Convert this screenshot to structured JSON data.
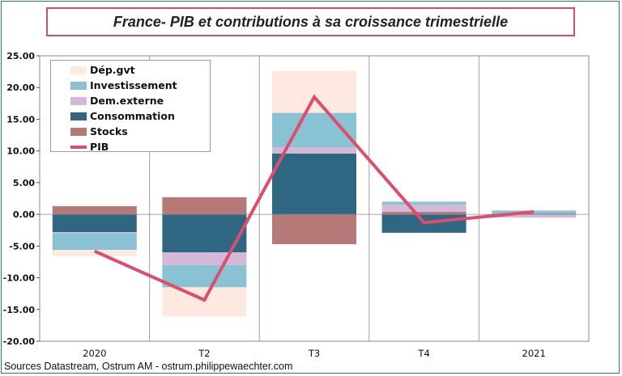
{
  "title": "France- PIB et contributions à sa croissance trimestrielle",
  "source": "Sources Datastream, Ostrum AM - ostrum.philippewaechter.com",
  "colors": {
    "Dep_gvt": "#fde9df",
    "Investissement": "#89c2d2",
    "Dem_externe": "#d4b8da",
    "Consommation": "#2f6783",
    "Stocks": "#b57a78",
    "PIB": "#dc4e6c",
    "title_border": "#d24f6e"
  },
  "chart_data": {
    "type": "bar",
    "stacked": true,
    "categories": [
      "2020",
      "T2",
      "T3",
      "T4",
      "2021"
    ],
    "ylim": [
      -20,
      25
    ],
    "ytick_step": 5,
    "grid": "vertical",
    "legend_position": "top-left",
    "series": [
      {
        "name": "Dép.gvt",
        "key": "Dep_gvt",
        "values": [
          -1.0,
          -4.6,
          6.6,
          0.1,
          0.1
        ]
      },
      {
        "name": "Investissement",
        "key": "Investissement",
        "values": [
          -2.6,
          -3.5,
          5.4,
          0.5,
          0.5
        ]
      },
      {
        "name": "Dem.externe",
        "key": "Dem_externe",
        "values": [
          -0.2,
          -2.0,
          1.0,
          1.1,
          -0.5
        ]
      },
      {
        "name": "Consommation",
        "key": "Consommation",
        "values": [
          -2.8,
          -6.0,
          9.6,
          -2.9,
          0.1
        ]
      },
      {
        "name": "Stocks",
        "key": "Stocks",
        "values": [
          1.3,
          2.7,
          -4.7,
          0.4,
          0.0
        ]
      },
      {
        "name": "PIB",
        "key": "PIB",
        "type": "line",
        "values": [
          -5.8,
          -13.5,
          18.5,
          -1.3,
          0.4
        ]
      }
    ]
  }
}
